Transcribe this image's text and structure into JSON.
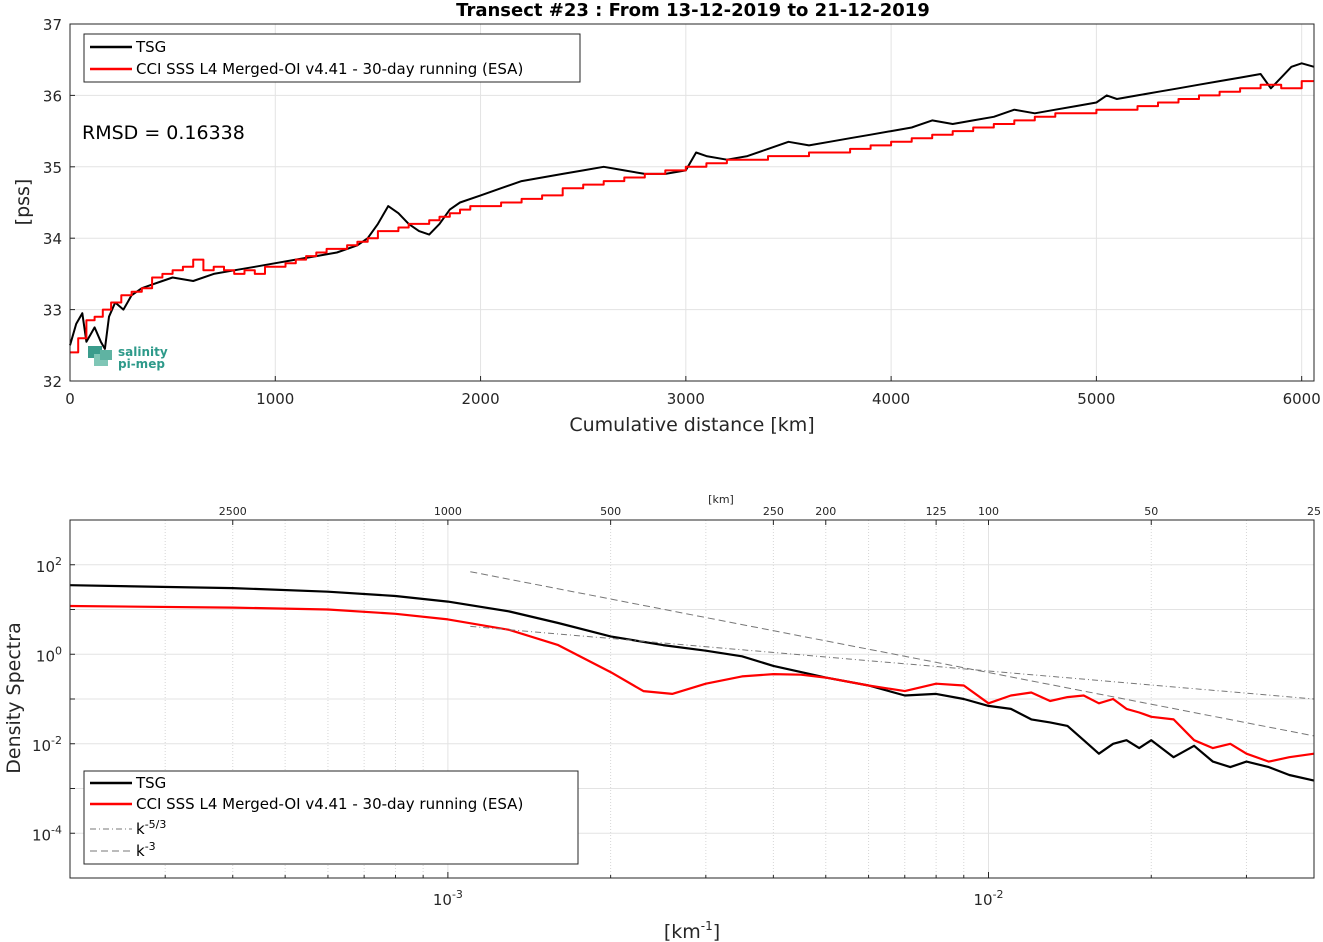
{
  "logo": {
    "line1": "salinity",
    "line2": "pi-mep"
  },
  "chart_data": [
    {
      "type": "line",
      "title": "Transect #23 : From 13-12-2019 to 21-12-2019",
      "xlabel": "Cumulative distance [km]",
      "ylabel": "[pss]",
      "xlim": [
        0,
        6060
      ],
      "ylim": [
        32,
        37
      ],
      "xticks": [
        0,
        1000,
        2000,
        3000,
        4000,
        5000,
        6000
      ],
      "yticks": [
        32,
        33,
        34,
        35,
        36,
        37
      ],
      "grid": true,
      "legend_position": "top-left",
      "annotation": "RMSD = 0.16338",
      "series": [
        {
          "name": "TSG",
          "color": "#000000",
          "x": [
            0,
            30,
            60,
            80,
            100,
            120,
            150,
            170,
            190,
            220,
            260,
            300,
            350,
            400,
            450,
            500,
            600,
            700,
            800,
            900,
            1000,
            1100,
            1200,
            1300,
            1400,
            1450,
            1500,
            1550,
            1600,
            1650,
            1700,
            1750,
            1800,
            1850,
            1900,
            2000,
            2100,
            2200,
            2300,
            2400,
            2500,
            2600,
            2700,
            2800,
            2900,
            3000,
            3050,
            3100,
            3200,
            3300,
            3400,
            3500,
            3600,
            3700,
            3800,
            3900,
            4000,
            4100,
            4200,
            4300,
            4400,
            4500,
            4600,
            4700,
            4800,
            4900,
            5000,
            5050,
            5100,
            5200,
            5300,
            5400,
            5500,
            5600,
            5700,
            5800,
            5850,
            5900,
            5950,
            6000,
            6060
          ],
          "values": [
            32.5,
            32.8,
            32.95,
            32.55,
            32.65,
            32.75,
            32.55,
            32.45,
            32.9,
            33.1,
            33.0,
            33.2,
            33.3,
            33.35,
            33.4,
            33.45,
            33.4,
            33.5,
            33.55,
            33.6,
            33.65,
            33.7,
            33.75,
            33.8,
            33.9,
            34.0,
            34.2,
            34.45,
            34.35,
            34.2,
            34.1,
            34.05,
            34.2,
            34.4,
            34.5,
            34.6,
            34.7,
            34.8,
            34.85,
            34.9,
            34.95,
            35.0,
            34.95,
            34.9,
            34.9,
            34.95,
            35.2,
            35.15,
            35.1,
            35.15,
            35.25,
            35.35,
            35.3,
            35.35,
            35.4,
            35.45,
            35.5,
            35.55,
            35.65,
            35.6,
            35.65,
            35.7,
            35.8,
            35.75,
            35.8,
            35.85,
            35.9,
            36.0,
            35.95,
            36.0,
            36.05,
            36.1,
            36.15,
            36.2,
            36.25,
            36.3,
            36.1,
            36.25,
            36.4,
            36.45,
            36.4
          ]
        },
        {
          "name": "CCI SSS L4 Merged-OI v4.41 - 30-day running (ESA)",
          "color": "#ff0000",
          "step": true,
          "x": [
            0,
            40,
            80,
            120,
            160,
            200,
            250,
            300,
            350,
            400,
            450,
            500,
            550,
            600,
            650,
            700,
            750,
            800,
            850,
            900,
            950,
            1000,
            1050,
            1100,
            1150,
            1200,
            1250,
            1300,
            1350,
            1400,
            1450,
            1500,
            1550,
            1600,
            1650,
            1700,
            1750,
            1800,
            1850,
            1900,
            1950,
            2000,
            2100,
            2200,
            2300,
            2400,
            2500,
            2600,
            2700,
            2800,
            2900,
            3000,
            3100,
            3200,
            3300,
            3400,
            3500,
            3600,
            3700,
            3800,
            3900,
            4000,
            4100,
            4200,
            4300,
            4400,
            4500,
            4600,
            4700,
            4800,
            4900,
            5000,
            5100,
            5200,
            5300,
            5400,
            5500,
            5600,
            5700,
            5800,
            5900,
            6000,
            6060
          ],
          "values": [
            32.4,
            32.6,
            32.85,
            32.9,
            33.0,
            33.1,
            33.2,
            33.25,
            33.3,
            33.45,
            33.5,
            33.55,
            33.6,
            33.7,
            33.55,
            33.6,
            33.55,
            33.5,
            33.55,
            33.5,
            33.6,
            33.6,
            33.65,
            33.7,
            33.75,
            33.8,
            33.85,
            33.85,
            33.9,
            33.95,
            34.0,
            34.1,
            34.1,
            34.15,
            34.2,
            34.2,
            34.25,
            34.3,
            34.35,
            34.4,
            34.45,
            34.45,
            34.5,
            34.55,
            34.6,
            34.7,
            34.75,
            34.8,
            34.85,
            34.9,
            34.95,
            35.0,
            35.05,
            35.1,
            35.1,
            35.15,
            35.15,
            35.2,
            35.2,
            35.25,
            35.3,
            35.35,
            35.4,
            35.45,
            35.5,
            35.55,
            35.6,
            35.65,
            35.7,
            35.75,
            35.75,
            35.8,
            35.8,
            35.85,
            35.9,
            35.95,
            36.0,
            36.05,
            36.1,
            36.15,
            36.1,
            36.2,
            36.2
          ]
        }
      ]
    },
    {
      "type": "line",
      "title": "",
      "xlabel": "[km-1]",
      "xlabel_main": "[km",
      "xlabel_exp": "-1",
      "xlabel_end": "]",
      "ylabel": "Density Spectra",
      "xscale": "log",
      "yscale": "log",
      "xlim": [
        0.0002,
        0.04
      ],
      "ylim": [
        1e-05,
        1000
      ],
      "xticks": [
        0.001,
        0.01
      ],
      "xtick_labels": [
        {
          "base": "10",
          "exp": "-3"
        },
        {
          "base": "10",
          "exp": "-2"
        }
      ],
      "yticks": [
        0.0001,
        0.01,
        1,
        100
      ],
      "ytick_labels": [
        {
          "base": "10",
          "exp": "-4"
        },
        {
          "base": "10",
          "exp": "-2"
        },
        {
          "base": "10",
          "exp": "0"
        },
        {
          "base": "10",
          "exp": "2"
        }
      ],
      "top_axis_label": "[km]",
      "top_ticks": [
        2500,
        1000,
        500,
        250,
        200,
        125,
        100,
        50,
        25
      ],
      "grid": true,
      "legend_position": "bottom-left",
      "series": [
        {
          "name": "TSG",
          "color": "#000000",
          "x": [
            0.0002,
            0.0004,
            0.0006,
            0.0008,
            0.001,
            0.0013,
            0.0016,
            0.002,
            0.0025,
            0.003,
            0.0035,
            0.004,
            0.005,
            0.006,
            0.007,
            0.008,
            0.009,
            0.01,
            0.011,
            0.012,
            0.013,
            0.014,
            0.015,
            0.016,
            0.017,
            0.018,
            0.019,
            0.02,
            0.022,
            0.024,
            0.026,
            0.028,
            0.03,
            0.033,
            0.036,
            0.04
          ],
          "values": [
            35,
            30,
            25,
            20,
            15,
            9,
            5,
            2.5,
            1.6,
            1.2,
            0.9,
            0.55,
            0.3,
            0.2,
            0.12,
            0.13,
            0.1,
            0.07,
            0.06,
            0.035,
            0.03,
            0.025,
            0.012,
            0.006,
            0.01,
            0.012,
            0.008,
            0.012,
            0.005,
            0.009,
            0.004,
            0.003,
            0.004,
            0.003,
            0.002,
            0.0015
          ]
        },
        {
          "name": "CCI SSS L4 Merged-OI v4.41 - 30-day running (ESA)",
          "color": "#ff0000",
          "x": [
            0.0002,
            0.0004,
            0.0006,
            0.0008,
            0.001,
            0.0013,
            0.0016,
            0.002,
            0.0023,
            0.0026,
            0.003,
            0.0035,
            0.004,
            0.0045,
            0.005,
            0.006,
            0.007,
            0.008,
            0.009,
            0.01,
            0.011,
            0.012,
            0.013,
            0.014,
            0.015,
            0.016,
            0.017,
            0.018,
            0.019,
            0.02,
            0.022,
            0.024,
            0.026,
            0.028,
            0.03,
            0.033,
            0.036,
            0.04
          ],
          "values": [
            12,
            11,
            10,
            8,
            6,
            3.5,
            1.6,
            0.4,
            0.15,
            0.13,
            0.22,
            0.32,
            0.36,
            0.35,
            0.3,
            0.2,
            0.15,
            0.22,
            0.2,
            0.08,
            0.12,
            0.14,
            0.09,
            0.11,
            0.12,
            0.08,
            0.1,
            0.06,
            0.05,
            0.04,
            0.035,
            0.012,
            0.008,
            0.01,
            0.006,
            0.004,
            0.005,
            0.006
          ]
        },
        {
          "name": "k-5/3",
          "color": "#777777",
          "dash": "dashdot",
          "x": [
            0.0011,
            0.04
          ],
          "values": [
            4.2,
            0.1
          ]
        },
        {
          "name": "k-3",
          "color": "#777777",
          "dash": "dash",
          "x": [
            0.0011,
            0.04
          ],
          "values": [
            70,
            0.015
          ]
        }
      ],
      "legend_entries": [
        {
          "main": "TSG",
          "exp": ""
        },
        {
          "main": "CCI SSS L4 Merged-OI v4.41 - 30-day running (ESA)",
          "exp": ""
        },
        {
          "main": "k",
          "exp": "-5/3"
        },
        {
          "main": "k",
          "exp": "-3"
        }
      ]
    }
  ]
}
